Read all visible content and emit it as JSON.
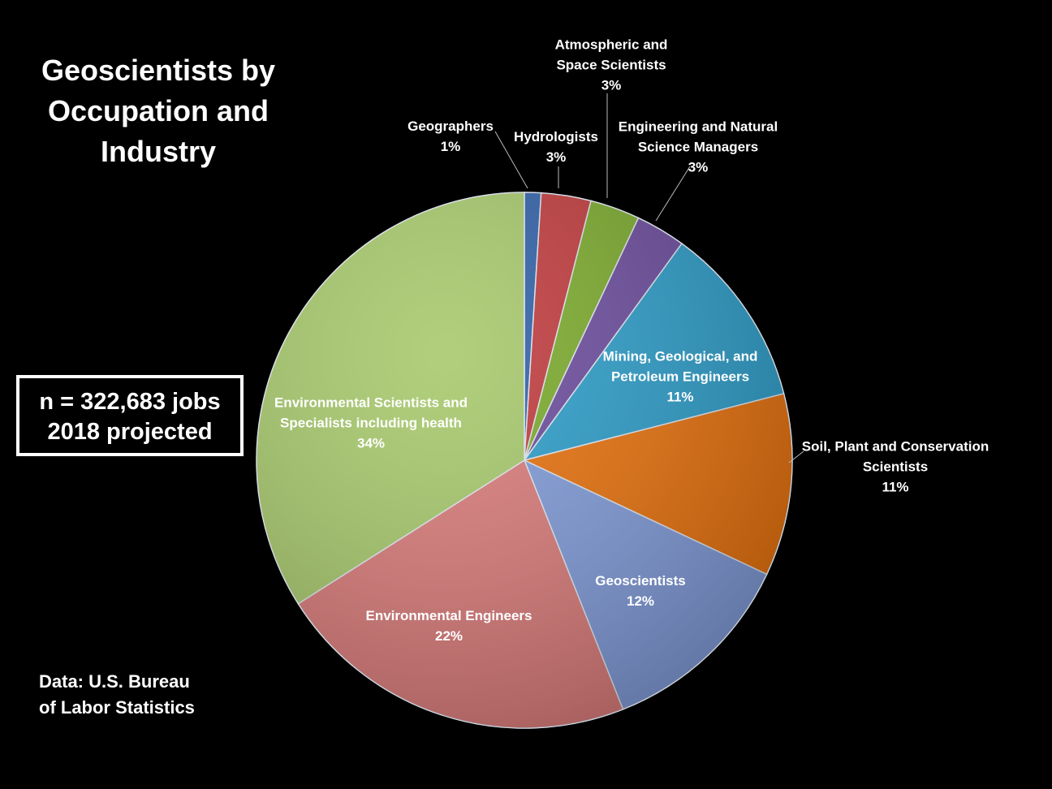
{
  "chart_data": {
    "type": "pie",
    "title": "Geoscientists by Occupation and Industry",
    "note_lines": [
      "n = 322,683 jobs",
      "2018 projected"
    ],
    "source": "Data: U.S. Bureau of Labor Statistics",
    "categories": [
      "Geographers",
      "Hydrologists",
      "Atmospheric and Space Scientists",
      "Engineering and Natural Science Managers",
      "Mining, Geological, and Petroleum Engineers",
      "Soil, Plant and Conservation Scientists",
      "Geoscientists",
      "Environmental Engineers",
      "Environmental Scientists and Specialists including health"
    ],
    "values": [
      1,
      3,
      3,
      3,
      11,
      11,
      12,
      22,
      34
    ],
    "value_labels": [
      "1%",
      "3%",
      "3%",
      "3%",
      "11%",
      "11%",
      "12%",
      "22%",
      "34%"
    ],
    "colors": [
      "#2e5fa8",
      "#c0393b",
      "#7aaa2a",
      "#6a4a9c",
      "#2a9cc8",
      "#e8700a",
      "#7f9ad8",
      "#d97a78",
      "#a6c86a"
    ]
  }
}
